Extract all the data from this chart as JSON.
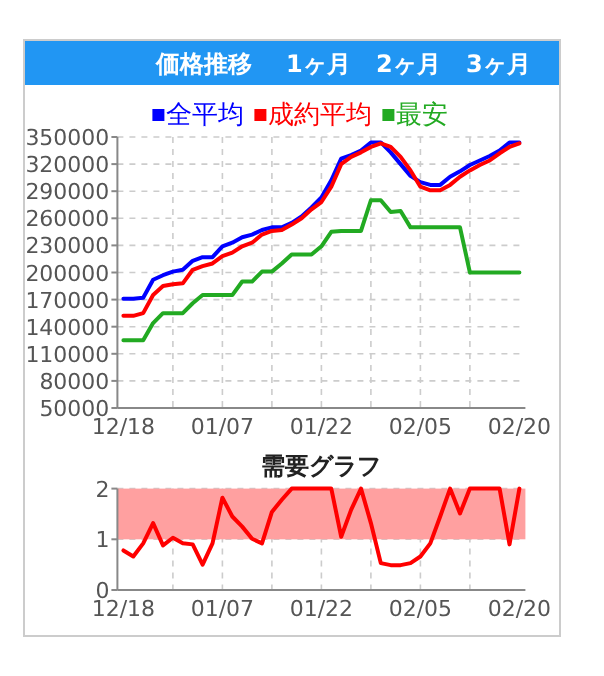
{
  "chart_data": [
    {
      "type": "line",
      "title": "価格推移",
      "annotations": [
        "1ヶ月",
        "2ヶ月",
        "3ヶ月"
      ],
      "categories": [
        "12/18",
        null,
        null,
        null,
        null,
        null,
        null,
        null,
        null,
        null,
        "01/07",
        null,
        null,
        null,
        null,
        null,
        null,
        null,
        null,
        null,
        "01/22",
        null,
        null,
        null,
        null,
        null,
        null,
        null,
        null,
        null,
        "02/05",
        null,
        null,
        null,
        null,
        null,
        null,
        null,
        null,
        null,
        "02/20"
      ],
      "ylim": [
        50000,
        350000
      ],
      "yticks": [
        50000,
        80000,
        110000,
        140000,
        170000,
        200000,
        230000,
        260000,
        290000,
        320000,
        350000
      ],
      "grid": true,
      "legend": "top",
      "line_style": "solid",
      "series": [
        {
          "name": "全平均",
          "color": "#0000ff",
          "values": [
            171000,
            171000,
            172000,
            192000,
            197000,
            201000,
            203000,
            213000,
            217000,
            217000,
            229000,
            233000,
            239000,
            242000,
            247000,
            250000,
            250000,
            255000,
            262000,
            272000,
            283000,
            302000,
            326000,
            330000,
            335000,
            344000,
            344000,
            333000,
            320000,
            307000,
            300000,
            297000,
            297000,
            306000,
            312000,
            319000,
            324000,
            329000,
            335000,
            344000,
            344000
          ]
        },
        {
          "name": "成約平均",
          "color": "#ff0000",
          "values": [
            152000,
            152000,
            155000,
            175000,
            185000,
            187000,
            188000,
            203000,
            207000,
            210000,
            218000,
            222000,
            229000,
            233000,
            242000,
            246000,
            247000,
            253000,
            260000,
            270000,
            278000,
            295000,
            320000,
            328000,
            333000,
            339000,
            343000,
            339000,
            328000,
            313000,
            295000,
            291000,
            291000,
            297000,
            306000,
            313000,
            319000,
            324000,
            332000,
            339000,
            343000
          ]
        },
        {
          "name": "最安",
          "color": "#22aa22",
          "values": [
            125000,
            125000,
            125000,
            144000,
            155000,
            155000,
            155000,
            166000,
            175000,
            175000,
            175000,
            175000,
            190000,
            190000,
            201000,
            201000,
            210000,
            220000,
            220000,
            220000,
            229000,
            245000,
            246000,
            246000,
            246000,
            280000,
            280000,
            267000,
            268000,
            250000,
            250000,
            250000,
            250000,
            250000,
            250000,
            200000,
            200000,
            200000,
            200000,
            200000,
            200000
          ]
        }
      ]
    },
    {
      "type": "line",
      "title": "需要グラフ",
      "categories": [
        "12/18",
        null,
        null,
        null,
        null,
        null,
        null,
        null,
        null,
        null,
        "01/07",
        null,
        null,
        null,
        null,
        null,
        null,
        null,
        null,
        null,
        "01/22",
        null,
        null,
        null,
        null,
        null,
        null,
        null,
        null,
        null,
        "02/05",
        null,
        null,
        null,
        null,
        null,
        null,
        null,
        null,
        null,
        "02/20"
      ],
      "ylim": [
        0,
        2
      ],
      "yticks": [
        0,
        1,
        2
      ],
      "grid": true,
      "line_style": "solid",
      "bands": [
        {
          "axis": "y",
          "from": 1,
          "to": 2,
          "color": "#ffa0a0"
        }
      ],
      "series": [
        {
          "color": "#ff0000",
          "values": [
            0.78,
            0.66,
            0.92,
            1.32,
            0.88,
            1.03,
            0.92,
            0.9,
            0.5,
            0.92,
            1.82,
            1.45,
            1.25,
            1.01,
            0.92,
            1.54,
            1.78,
            2,
            2,
            2,
            2,
            2,
            1.05,
            1.58,
            2,
            1.32,
            0.53,
            0.49,
            0.49,
            0.53,
            0.66,
            0.92,
            1.45,
            2,
            1.51,
            2,
            2,
            2,
            2,
            0.9,
            2
          ]
        }
      ]
    }
  ]
}
